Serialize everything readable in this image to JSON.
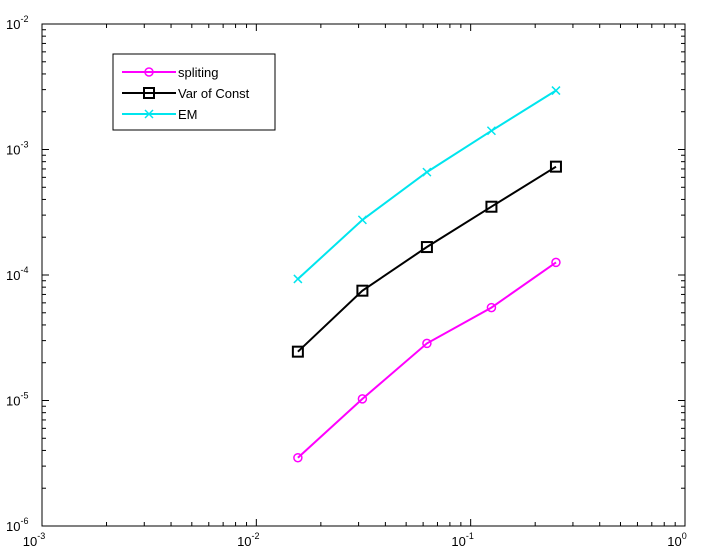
{
  "chart_data": {
    "type": "line",
    "title": "",
    "xlabel": "",
    "ylabel": "",
    "xscale": "log",
    "yscale": "log",
    "xlim": [
      0.001,
      1
    ],
    "ylim": [
      1e-06,
      0.01
    ],
    "grid": false,
    "legend_position": "top-left",
    "x_ticks": [
      {
        "base": "10",
        "exp": "-3"
      },
      {
        "base": "10",
        "exp": "-2"
      },
      {
        "base": "10",
        "exp": "-1"
      },
      {
        "base": "10",
        "exp": "0"
      }
    ],
    "y_ticks": [
      {
        "base": "10",
        "exp": "-6"
      },
      {
        "base": "10",
        "exp": "-5"
      },
      {
        "base": "10",
        "exp": "-4"
      },
      {
        "base": "10",
        "exp": "-3"
      },
      {
        "base": "10",
        "exp": "-2"
      }
    ],
    "x": [
      0.015625,
      0.03125,
      0.0625,
      0.125,
      0.25
    ],
    "series": [
      {
        "name": "spliting",
        "color": "#ff00ff",
        "marker": "circle",
        "values": [
          3.5e-06,
          1.03e-05,
          2.85e-05,
          5.5e-05,
          0.000126
        ]
      },
      {
        "name": "Var of Const",
        "color": "#000000",
        "marker": "square",
        "values": [
          2.45e-05,
          7.5e-05,
          0.000167,
          0.00035,
          0.00073
        ]
      },
      {
        "name": "EM",
        "color": "#00e5ee",
        "marker": "x",
        "values": [
          9.3e-05,
          0.000275,
          0.00066,
          0.00141,
          0.00295
        ]
      }
    ]
  }
}
